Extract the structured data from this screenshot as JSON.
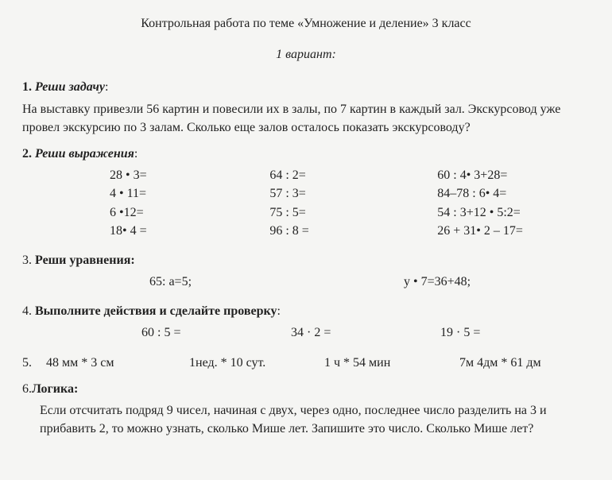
{
  "title": "Контрольная работа по теме «Умножение и деление» 3 класс",
  "variant": "1 вариант:",
  "s1": {
    "head_num": "1.",
    "head_label": "Реши задачу",
    "colon": ":",
    "text": "На выставку привезли 56  картин и повесили их в залы, по 7 картин в каждый зал. Экскурсовод уже провел экскурсию по 3 залам. Сколько еще залов осталось показать экскурсоводу?"
  },
  "s2": {
    "head_num": "2.",
    "head_label": "Реши выражения",
    "colon": ":",
    "col1": [
      "28 •  3=",
      "4 • 11=",
      "6 •12=",
      "18• 4 ="
    ],
    "col2": [
      "64 : 2=",
      "57 : 3=",
      "75 : 5=",
      "96 : 8 ="
    ],
    "col3": [
      "60 : 4• 3+28=",
      "84–78 : 6• 4=",
      "54 : 3+12 • 5:2=",
      "26 + 31• 2 – 17="
    ]
  },
  "s3": {
    "head_num": "3.",
    "head_label": "Реши уравнения:",
    "eq1": "65: а=5;",
    "eq2": "у • 7=36+48;"
  },
  "s4": {
    "head_num": "4.",
    "head_label": "Выполните   действия и сделайте проверку",
    "colon": ":",
    "e1": "60 : 5 =",
    "e2": "34 · 2 =",
    "e3": "19 · 5 ="
  },
  "s5": {
    "head_num": "5.",
    "c1": "48 мм * 3 см",
    "c2": "1нед. * 10 сут.",
    "c3": "1 ч * 54 мин",
    "c4": "7м 4дм * 61 дм"
  },
  "s6": {
    "head_num": "6.",
    "head_label": "Логика:",
    "text": "Если отсчитать подряд  9 чисел, начиная с двух,  через одно, последнее число разделить на 3 и прибавить 2,  то можно узнать, сколько Мише лет. Запишите это число.    Сколько Мише лет?"
  }
}
